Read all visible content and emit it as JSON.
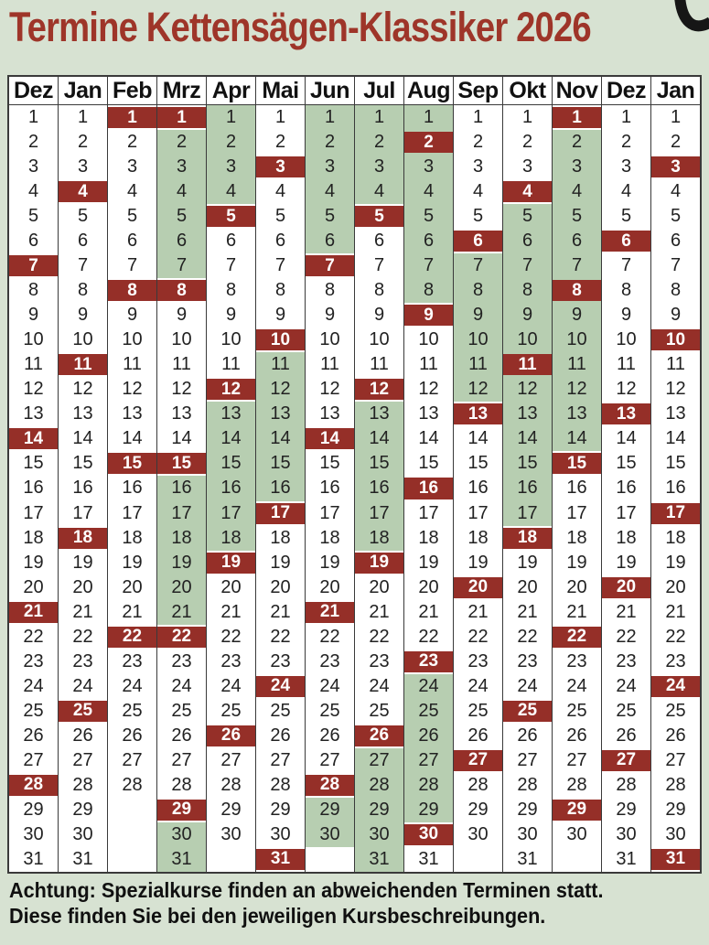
{
  "title": "Termine Kettensägen-Klassiker 2026",
  "decoration": {
    "name": "corner-hook",
    "color": "#161616"
  },
  "colors": {
    "page_background": "#d7e2d2",
    "course_week_green": "#b7ceb1",
    "sunday_red": "#952f28",
    "title_red": "#9e3529",
    "table_border": "#3a3a3a"
  },
  "calendar": {
    "max_rows": 31,
    "months": [
      {
        "label": "Dez",
        "days": 31,
        "sundays": [
          7,
          14,
          21,
          28
        ],
        "green": []
      },
      {
        "label": "Jan",
        "days": 31,
        "sundays": [
          4,
          11,
          18,
          25
        ],
        "green": []
      },
      {
        "label": "Feb",
        "days": 28,
        "sundays": [
          1,
          8,
          15,
          22
        ],
        "green": []
      },
      {
        "label": "Mrz",
        "days": 31,
        "sundays": [
          1,
          8,
          15,
          22,
          29
        ],
        "green": [
          [
            2,
            7
          ],
          [
            16,
            21
          ],
          [
            30,
            31
          ]
        ]
      },
      {
        "label": "Apr",
        "days": 30,
        "sundays": [
          5,
          12,
          19,
          26
        ],
        "green": [
          [
            1,
            4
          ],
          [
            13,
            18
          ]
        ]
      },
      {
        "label": "Mai",
        "days": 31,
        "sundays": [
          3,
          10,
          17,
          24,
          31
        ],
        "green": [
          [
            11,
            16
          ]
        ]
      },
      {
        "label": "Jun",
        "days": 30,
        "sundays": [
          7,
          14,
          21,
          28
        ],
        "green": [
          [
            1,
            6
          ],
          [
            29,
            30
          ]
        ]
      },
      {
        "label": "Jul",
        "days": 31,
        "sundays": [
          5,
          12,
          19,
          26
        ],
        "green": [
          [
            1,
            4
          ],
          [
            13,
            18
          ],
          [
            27,
            31
          ]
        ]
      },
      {
        "label": "Aug",
        "days": 31,
        "sundays": [
          2,
          9,
          16,
          23,
          30
        ],
        "green": [
          [
            1,
            8
          ],
          [
            24,
            29
          ]
        ]
      },
      {
        "label": "Sep",
        "days": 30,
        "sundays": [
          6,
          13,
          20,
          27
        ],
        "green": [
          [
            7,
            12
          ]
        ]
      },
      {
        "label": "Okt",
        "days": 31,
        "sundays": [
          4,
          11,
          18,
          25
        ],
        "green": [
          [
            5,
            17
          ]
        ]
      },
      {
        "label": "Nov",
        "days": 30,
        "sundays": [
          1,
          8,
          15,
          22,
          29
        ],
        "green": [
          [
            2,
            14
          ]
        ]
      },
      {
        "label": "Dez",
        "days": 31,
        "sundays": [
          6,
          13,
          20,
          27
        ],
        "green": []
      },
      {
        "label": "Jan",
        "days": 31,
        "sundays": [
          3,
          10,
          17,
          24,
          31
        ],
        "green": []
      }
    ]
  },
  "footer": {
    "line1": "Achtung: Spezialkurse finden an abweichenden Terminen statt.",
    "line2": "Diese finden Sie bei den jeweiligen Kursbeschreibungen."
  }
}
